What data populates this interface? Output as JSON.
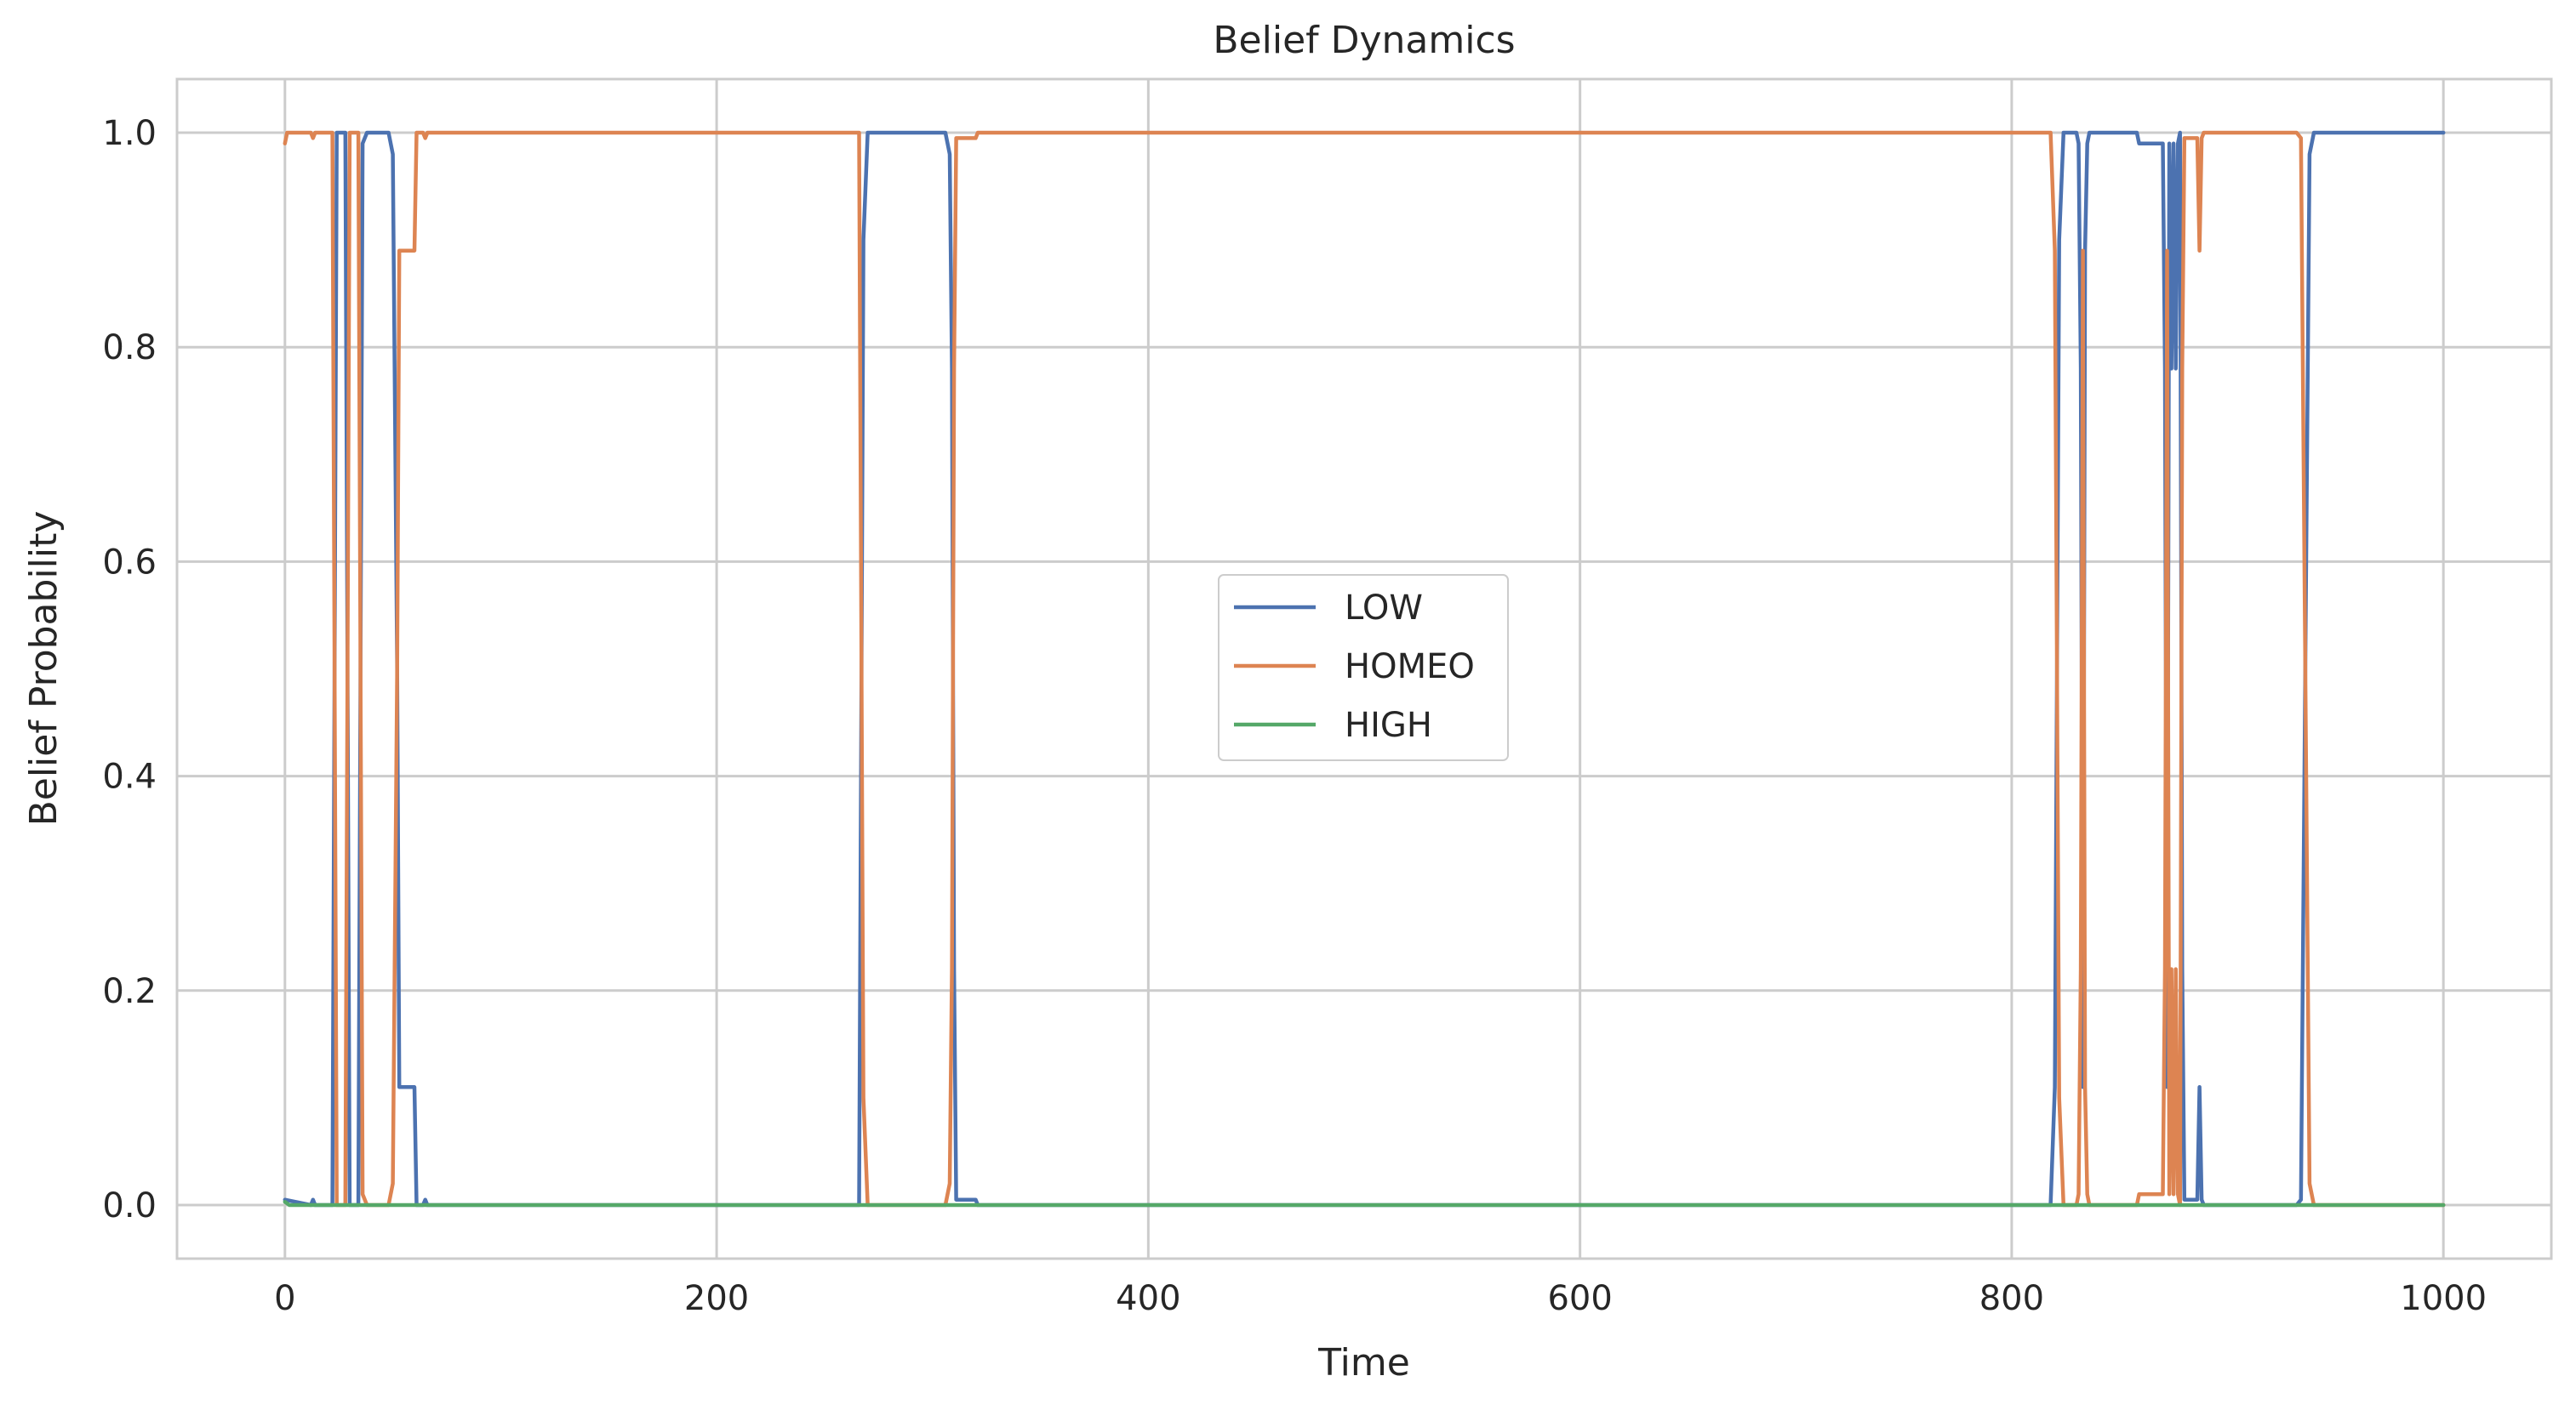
{
  "chart_data": {
    "type": "line",
    "title": "Belief Dynamics",
    "xlabel": "Time",
    "ylabel": "Belief Probability",
    "xlim": [
      -50,
      1050
    ],
    "ylim": [
      -0.05,
      1.05
    ],
    "xticks": [
      0,
      200,
      400,
      600,
      800,
      1000
    ],
    "yticks": [
      0.0,
      0.2,
      0.4,
      0.6,
      0.8,
      1.0
    ],
    "xtick_labels": [
      "0",
      "200",
      "400",
      "600",
      "800",
      "1000"
    ],
    "ytick_labels": [
      "0.0",
      "0.2",
      "0.4",
      "0.6",
      "0.8",
      "1.0"
    ],
    "grid": true,
    "legend_position": "center",
    "series": [
      {
        "name": "LOW",
        "color": "#4c72b0",
        "x": [
          0,
          12,
          13,
          14,
          22,
          24,
          26,
          28,
          30,
          32,
          34,
          36,
          38,
          40,
          48,
          50,
          52,
          53,
          58,
          60,
          61,
          64,
          65,
          66,
          67,
          266,
          268,
          270,
          272,
          306,
          308,
          309,
          310,
          311,
          312,
          314,
          320,
          321,
          818,
          820,
          822,
          824,
          830,
          831,
          832,
          833,
          834,
          835,
          836,
          838,
          840,
          858,
          859,
          870,
          871,
          872,
          873,
          874,
          875,
          876,
          877,
          878,
          879,
          880,
          881,
          882,
          886,
          887,
          888,
          889,
          890,
          932,
          934,
          936,
          938,
          940,
          1000
        ],
        "values": [
          0.005,
          0.0,
          0.005,
          0.0,
          0.0,
          1.0,
          1.0,
          1.0,
          0.0,
          0.0,
          0.0,
          0.99,
          1.0,
          1.0,
          1.0,
          0.98,
          0.5,
          0.11,
          0.11,
          0.11,
          0.0,
          0.0,
          0.005,
          0.0,
          0.0,
          0.0,
          0.9,
          1.0,
          1.0,
          1.0,
          0.98,
          0.78,
          0.22,
          0.005,
          0.005,
          0.005,
          0.005,
          0.0,
          0.0,
          0.11,
          0.9,
          1.0,
          1.0,
          0.99,
          0.78,
          0.11,
          0.89,
          0.99,
          1.0,
          1.0,
          1.0,
          1.0,
          0.99,
          0.99,
          0.78,
          0.11,
          0.99,
          0.78,
          0.99,
          0.78,
          0.99,
          1.0,
          0.22,
          0.005,
          0.005,
          0.005,
          0.005,
          0.11,
          0.005,
          0.0,
          0.0,
          0.0,
          0.005,
          0.5,
          0.98,
          1.0,
          1.0
        ]
      },
      {
        "name": "HOMEO",
        "color": "#dd8452",
        "x": [
          0,
          1,
          2,
          12,
          13,
          14,
          22,
          24,
          26,
          28,
          30,
          32,
          34,
          36,
          38,
          40,
          48,
          50,
          52,
          53,
          58,
          60,
          61,
          64,
          65,
          66,
          67,
          266,
          268,
          270,
          272,
          306,
          308,
          309,
          310,
          311,
          312,
          314,
          320,
          321,
          818,
          820,
          822,
          824,
          830,
          831,
          832,
          833,
          834,
          835,
          836,
          838,
          840,
          858,
          859,
          870,
          871,
          872,
          873,
          874,
          875,
          876,
          877,
          878,
          879,
          880,
          881,
          882,
          886,
          887,
          888,
          889,
          890,
          932,
          934,
          936,
          938,
          940,
          1000
        ],
        "values": [
          0.99,
          1.0,
          1.0,
          1.0,
          0.995,
          1.0,
          1.0,
          0.0,
          0.0,
          0.0,
          1.0,
          1.0,
          1.0,
          0.01,
          0.0,
          0.0,
          0.0,
          0.02,
          0.5,
          0.89,
          0.89,
          0.89,
          1.0,
          1.0,
          0.995,
          1.0,
          1.0,
          1.0,
          0.1,
          0.0,
          0.0,
          0.0,
          0.02,
          0.22,
          0.78,
          0.995,
          0.995,
          0.995,
          0.995,
          1.0,
          1.0,
          0.89,
          0.1,
          0.0,
          0.0,
          0.01,
          0.22,
          0.89,
          0.11,
          0.01,
          0.0,
          0.0,
          0.0,
          0.0,
          0.01,
          0.01,
          0.22,
          0.89,
          0.01,
          0.22,
          0.01,
          0.22,
          0.01,
          0.0,
          0.78,
          0.995,
          0.995,
          0.995,
          0.995,
          0.89,
          0.995,
          1.0,
          1.0,
          1.0,
          0.995,
          0.5,
          0.02,
          0.0,
          0.0
        ]
      },
      {
        "name": "HIGH",
        "color": "#55a868",
        "x": [
          0,
          2,
          1000
        ],
        "values": [
          0.003,
          0.0,
          0.0
        ]
      }
    ]
  }
}
